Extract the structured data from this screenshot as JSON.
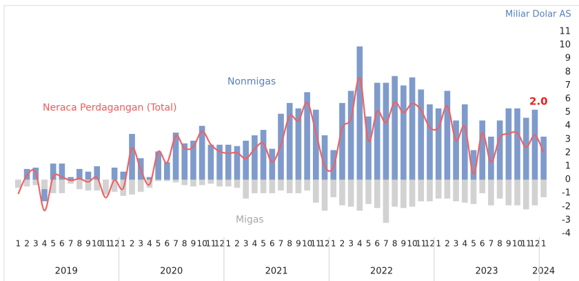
{
  "chart_data": {
    "type": "bar-line",
    "unit_label": "Miliar Dolar AS",
    "annotations": {
      "nonmigas": "Nonmigas",
      "migas": "Migas",
      "total": "Neraca Perdagangan (Total)"
    },
    "end_label": "2.0",
    "categories": [
      "1",
      "2",
      "3",
      "4",
      "5",
      "6",
      "7",
      "8",
      "9",
      "10",
      "11",
      "12",
      "1",
      "2",
      "3",
      "4",
      "5",
      "6",
      "7",
      "8",
      "9",
      "10",
      "11",
      "12",
      "1",
      "2",
      "3",
      "4",
      "5",
      "6",
      "7",
      "8",
      "9",
      "10",
      "11",
      "12",
      "1",
      "2",
      "3",
      "4",
      "5",
      "6",
      "7",
      "8",
      "9",
      "10",
      "11",
      "12",
      "1",
      "2",
      "3",
      "4",
      "5",
      "6",
      "7",
      "8",
      "9",
      "10",
      "11",
      "12",
      "1"
    ],
    "years": [
      "2019",
      "2020",
      "2021",
      "2022",
      "2023",
      "2024"
    ],
    "series": [
      {
        "name": "Nonmigas",
        "color": "#7f9bcc",
        "kind": "bar",
        "values": [
          -0.5,
          0.8,
          0.9,
          -1.6,
          1.2,
          1.2,
          0.2,
          0.8,
          0.6,
          1.0,
          -0.2,
          0.9,
          0.6,
          3.4,
          1.6,
          0.2,
          2.1,
          1.3,
          3.5,
          2.7,
          2.9,
          4.0,
          2.6,
          2.6,
          2.6,
          2.5,
          2.9,
          3.3,
          3.7,
          2.3,
          4.9,
          5.7,
          5.3,
          6.5,
          5.2,
          3.3,
          2.2,
          5.7,
          6.6,
          9.9,
          4.7,
          7.2,
          7.2,
          7.7,
          7.0,
          7.6,
          6.7,
          5.6,
          5.3,
          6.6,
          4.4,
          5.6,
          2.2,
          4.4,
          3.2,
          4.4,
          5.3,
          5.3,
          4.6,
          5.2,
          3.2
        ]
      },
      {
        "name": "Migas",
        "color": "#d2d2d2",
        "kind": "bar",
        "values": [
          -0.6,
          -0.5,
          -0.4,
          -0.7,
          -1.0,
          -1.0,
          -0.3,
          -0.7,
          -0.8,
          -0.8,
          -1.1,
          -0.9,
          -1.2,
          -1.1,
          -0.9,
          -0.6,
          -0.1,
          -0.1,
          -0.2,
          -0.4,
          -0.5,
          -0.4,
          -0.3,
          -0.5,
          -0.5,
          -0.6,
          -1.4,
          -1.0,
          -1.0,
          -1.0,
          -0.8,
          -1.0,
          -1.0,
          -0.8,
          -1.7,
          -2.3,
          -1.3,
          -1.9,
          -2.0,
          -2.3,
          -1.8,
          -2.1,
          -3.2,
          -2.0,
          -2.1,
          -2.0,
          -1.6,
          -1.6,
          -1.4,
          -1.4,
          -1.6,
          -1.7,
          -1.8,
          -1.0,
          -1.9,
          -1.4,
          -1.9,
          -1.9,
          -2.2,
          -1.9,
          -1.3
        ]
      },
      {
        "name": "Neraca Perdagangan (Total)",
        "color": "#f06262",
        "kind": "line",
        "values": [
          -1.06,
          0.33,
          0.54,
          -2.29,
          0.21,
          0.2,
          -0.06,
          0.08,
          -0.16,
          0.16,
          -1.33,
          -0.03,
          -0.64,
          2.34,
          0.74,
          -0.35,
          2.09,
          1.27,
          3.26,
          2.33,
          2.44,
          3.61,
          2.62,
          2.1,
          1.96,
          2.01,
          1.57,
          2.29,
          2.7,
          1.32,
          2.59,
          4.74,
          4.37,
          5.73,
          3.51,
          1.02,
          0.93,
          3.83,
          4.53,
          7.56,
          2.9,
          5.09,
          4.23,
          5.76,
          4.99,
          5.67,
          5.16,
          3.89,
          3.87,
          5.48,
          2.91,
          3.94,
          0.44,
          3.46,
          1.31,
          3.12,
          3.42,
          3.48,
          2.41,
          3.31,
          2.02
        ]
      }
    ],
    "ylim": [
      -4,
      11
    ],
    "yticks": [
      -4,
      -3,
      -2,
      -1,
      0,
      1,
      2,
      3,
      4,
      5,
      6,
      7,
      8,
      9,
      10,
      11
    ],
    "grid": false
  }
}
